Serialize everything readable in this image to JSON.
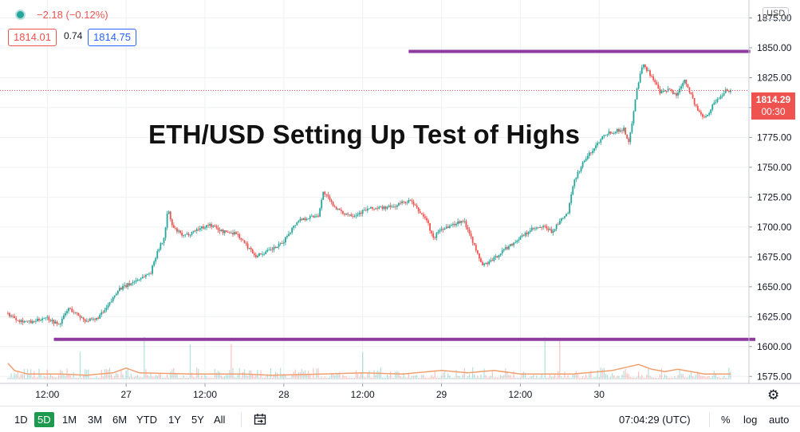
{
  "header": {
    "change_text": "−2.18 (−0.12%)",
    "bid": "1814.01",
    "spread": "0.74",
    "ask": "1814.75",
    "currency": "USD"
  },
  "headline": "ETH/USD Setting Up Test of Highs",
  "last_price": {
    "value": "1814.29",
    "countdown": "00:30"
  },
  "toolbar": {
    "timeframes": [
      "1D",
      "5D",
      "1M",
      "3M",
      "6M",
      "YTD",
      "1Y",
      "5Y",
      "All"
    ],
    "active_timeframe": "5D",
    "clock": "07:04:29 (UTC)",
    "percent_label": "%",
    "log_label": "log",
    "auto_label": "auto"
  },
  "colors": {
    "up": "#26a69a",
    "down": "#ef5350",
    "level_line": "#8e3a9e",
    "volume_line": "#f0a070",
    "price_line": "#ef5350"
  },
  "chart_data": {
    "type": "candlestick",
    "title": "ETH/USD Setting Up Test of Highs",
    "y_axis": {
      "ticks": [
        1575,
        1600,
        1625,
        1650,
        1675,
        1700,
        1725,
        1750,
        1775,
        1800,
        1825,
        1850,
        1875
      ],
      "tick_labels": [
        "1575.00",
        "1600.00",
        "1625.00",
        "1650.00",
        "1675.00",
        "1700.00",
        "1725.00",
        "1750.00",
        "1775.00",
        "1800.00",
        "1825.00",
        "1850.00",
        "1875.00"
      ],
      "range": [
        1563,
        1893
      ]
    },
    "x_axis": {
      "tick_labels": [
        "12:00",
        "27",
        "12:00",
        "28",
        "12:00",
        "29",
        "12:00",
        "30"
      ],
      "range_hours": [
        0,
        108
      ]
    },
    "price_path": [
      [
        0,
        1628
      ],
      [
        2,
        1622
      ],
      [
        4,
        1620
      ],
      [
        6,
        1625
      ],
      [
        8,
        1618
      ],
      [
        9.5,
        1632
      ],
      [
        10.5,
        1628
      ],
      [
        12,
        1622
      ],
      [
        13.5,
        1622
      ],
      [
        15,
        1630
      ],
      [
        16,
        1638
      ],
      [
        17,
        1648
      ],
      [
        18,
        1650
      ],
      [
        20,
        1656
      ],
      [
        22,
        1662
      ],
      [
        23,
        1680
      ],
      [
        24,
        1690
      ],
      [
        24.6,
        1715
      ],
      [
        25.3,
        1700
      ],
      [
        27,
        1692
      ],
      [
        29,
        1698
      ],
      [
        31,
        1702
      ],
      [
        33,
        1696
      ],
      [
        35,
        1695
      ],
      [
        36,
        1688
      ],
      [
        38,
        1676
      ],
      [
        40,
        1680
      ],
      [
        42,
        1686
      ],
      [
        43,
        1695
      ],
      [
        44.5,
        1706
      ],
      [
        46,
        1708
      ],
      [
        47.5,
        1710
      ],
      [
        48.3,
        1730
      ],
      [
        49.5,
        1720
      ],
      [
        51,
        1712
      ],
      [
        53,
        1710
      ],
      [
        55,
        1715
      ],
      [
        57,
        1716
      ],
      [
        59,
        1717
      ],
      [
        60,
        1720
      ],
      [
        61.5,
        1722
      ],
      [
        63,
        1712
      ],
      [
        64,
        1706
      ],
      [
        65,
        1690
      ],
      [
        66,
        1698
      ],
      [
        68,
        1702
      ],
      [
        69.5,
        1706
      ],
      [
        70.5,
        1696
      ],
      [
        71.5,
        1680
      ],
      [
        72.5,
        1668
      ],
      [
        74,
        1672
      ],
      [
        75.5,
        1680
      ],
      [
        77,
        1686
      ],
      [
        78.5,
        1692
      ],
      [
        80,
        1698
      ],
      [
        82,
        1700
      ],
      [
        83,
        1696
      ],
      [
        84.5,
        1706
      ],
      [
        85.5,
        1712
      ],
      [
        86.5,
        1740
      ],
      [
        88,
        1756
      ],
      [
        89.5,
        1766
      ],
      [
        91,
        1778
      ],
      [
        92.5,
        1780
      ],
      [
        94,
        1782
      ],
      [
        94.8,
        1770
      ],
      [
        95.8,
        1810
      ],
      [
        96.8,
        1836
      ],
      [
        97.5,
        1832
      ],
      [
        98.5,
        1824
      ],
      [
        99.5,
        1812
      ],
      [
        101,
        1815
      ],
      [
        102,
        1810
      ],
      [
        103.2,
        1824
      ],
      [
        104,
        1814
      ],
      [
        105,
        1800
      ],
      [
        106,
        1792
      ],
      [
        107,
        1796
      ],
      [
        107.8,
        1805
      ],
      [
        108.6,
        1808
      ],
      [
        109.5,
        1815
      ],
      [
        110,
        1814.29
      ]
    ],
    "volume_path": [
      [
        0,
        1586
      ],
      [
        1,
        1580
      ],
      [
        3,
        1577
      ],
      [
        8,
        1577
      ],
      [
        12,
        1576
      ],
      [
        16,
        1578
      ],
      [
        18,
        1582
      ],
      [
        20,
        1578
      ],
      [
        28,
        1577
      ],
      [
        36,
        1577
      ],
      [
        40,
        1576
      ],
      [
        48,
        1577
      ],
      [
        54,
        1578
      ],
      [
        60,
        1577
      ],
      [
        66,
        1580
      ],
      [
        70,
        1578
      ],
      [
        74,
        1580
      ],
      [
        78,
        1577
      ],
      [
        86,
        1577
      ],
      [
        92,
        1580
      ],
      [
        96,
        1585
      ],
      [
        98,
        1581
      ],
      [
        100,
        1579
      ],
      [
        102,
        1581
      ],
      [
        106,
        1577
      ],
      [
        110,
        1577
      ]
    ],
    "levels": [
      {
        "name": "resistance",
        "value": 1847,
        "from_hour": 61,
        "to_hour": 113
      },
      {
        "name": "support",
        "value": 1606,
        "from_hour": 7,
        "to_hour": 115
      }
    ],
    "last_price_value": 1814.29
  }
}
